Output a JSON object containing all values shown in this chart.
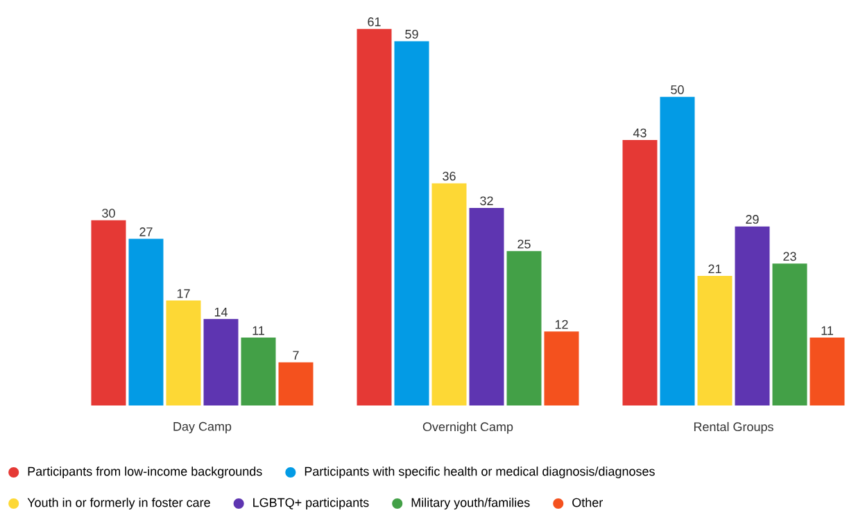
{
  "chart_data": {
    "type": "bar",
    "categories": [
      "Day Camp",
      "Overnight Camp",
      "Rental Groups"
    ],
    "series": [
      {
        "name": "Participants from low-income backgrounds",
        "color": "#e53935",
        "values": [
          30,
          61,
          43
        ]
      },
      {
        "name": "Participants with specific health or medical diagnosis/diagnoses",
        "color": "#039be5",
        "values": [
          27,
          59,
          50
        ]
      },
      {
        "name": "Youth in or formerly in foster care",
        "color": "#fdd835",
        "values": [
          17,
          36,
          21
        ]
      },
      {
        "name": "LGBTQ+ participants",
        "color": "#5e35b1",
        "values": [
          14,
          32,
          29
        ]
      },
      {
        "name": "Military youth/families",
        "color": "#43a047",
        "values": [
          11,
          25,
          23
        ]
      },
      {
        "name": "Other",
        "color": "#f4511e",
        "values": [
          7,
          12,
          11
        ]
      }
    ],
    "data_labels": true,
    "legend": "bottom"
  }
}
